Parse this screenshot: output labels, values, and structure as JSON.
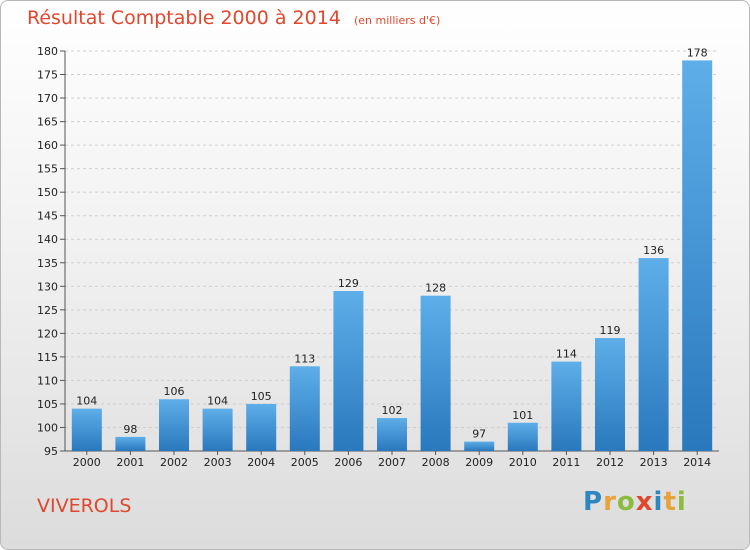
{
  "title": "Résultat Comptable 2000 à 2014",
  "unit_note": "(en milliers d'€)",
  "town": "VIVEROLS",
  "brand": "Proxiti",
  "brand_letters": [
    {
      "ch": "P",
      "color": "#2e86c1"
    },
    {
      "ch": "r",
      "color": "#e8a23a"
    },
    {
      "ch": "o",
      "color": "#8cbc3f"
    },
    {
      "ch": "x",
      "color": "#e0472d"
    },
    {
      "ch": "i",
      "color": "#2e86c1"
    },
    {
      "ch": "t",
      "color": "#e8a23a"
    },
    {
      "ch": "i",
      "color": "#8cbc3f"
    }
  ],
  "colors": {
    "accent": "#e0472d",
    "bar_top": "#5eaee9",
    "bar_bottom": "#2a78bd",
    "grid": "#cfcfcf",
    "text": "#222222"
  },
  "chart_data": {
    "type": "bar",
    "title": "Résultat Comptable 2000 à 2014",
    "xlabel": "",
    "ylabel": "",
    "categories": [
      "2000",
      "2001",
      "2002",
      "2003",
      "2004",
      "2005",
      "2006",
      "2007",
      "2008",
      "2009",
      "2010",
      "2011",
      "2012",
      "2013",
      "2014"
    ],
    "values": [
      104,
      98,
      106,
      104,
      105,
      113,
      129,
      102,
      128,
      97,
      101,
      114,
      119,
      136,
      178
    ],
    "ylim": [
      95,
      180
    ],
    "yticks": [
      95,
      100,
      105,
      110,
      115,
      120,
      125,
      130,
      135,
      140,
      145,
      150,
      155,
      160,
      165,
      170,
      175,
      180
    ],
    "grid": true
  }
}
